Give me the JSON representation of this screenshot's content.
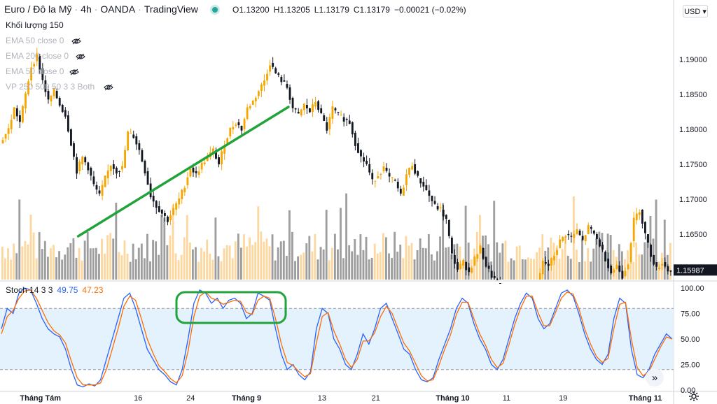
{
  "header": {
    "symbol": "Euro / Đô la Mỹ",
    "interval": "4h",
    "broker": "OANDA",
    "source": "TradingView",
    "sep": "·",
    "ohlc": {
      "o_label": "O",
      "o": "1.13200",
      "h_label": "H",
      "h": "1.13205",
      "l_label": "L",
      "l": "1.13179",
      "c_label": "C",
      "c": "1.13179",
      "change": "−0.00021 (−0.02%)"
    }
  },
  "indicators": [
    {
      "label": "Khối lượng  150"
    },
    {
      "label": "EMA 50 close 0"
    },
    {
      "label": "EMA 200 close 0"
    },
    {
      "label": "EMA 50 close 0"
    },
    {
      "label": "VP 250 500 50 3 3 Both"
    }
  ],
  "currency_button": "USD ▾",
  "stoch": {
    "name": "Stoch 14 3 3",
    "k": "49.75",
    "d": "47.23",
    "k_color": "#2962ff",
    "d_color": "#ff6d00"
  },
  "nav_icon": "»",
  "colors": {
    "up": "#f7a600",
    "down": "#131722",
    "vol_up": "#fcd8a0",
    "vol_down": "#9e9e9e",
    "band": "#e3f2fd",
    "annot": "#21a33a"
  },
  "chart_data": [
    {
      "type": "candlestick",
      "yaxis_ticks": [
        "1.19000",
        "1.18500",
        "1.18000",
        "1.17500",
        "1.17000",
        "1.16500",
        "1.16000"
      ],
      "ylim": [
        1.1585,
        1.1965
      ],
      "current_price": "1.15987",
      "xaxis_ticks": [
        "Tháng Tám",
        "16",
        "24",
        "Tháng 9",
        "13",
        "21",
        "Tháng 10",
        "11",
        "19",
        "Tháng 11"
      ],
      "price_path": [
        [
          0,
          1.178
        ],
        [
          3,
          1.18
        ],
        [
          5,
          1.183
        ],
        [
          7,
          1.181
        ],
        [
          9,
          1.185
        ],
        [
          11,
          1.189
        ],
        [
          13,
          1.1905
        ],
        [
          15,
          1.187
        ],
        [
          17,
          1.184
        ],
        [
          19,
          1.1855
        ],
        [
          21,
          1.1835
        ],
        [
          23,
          1.182
        ],
        [
          25,
          1.178
        ],
        [
          27,
          1.174
        ],
        [
          29,
          1.176
        ],
        [
          31,
          1.1745
        ],
        [
          33,
          1.172
        ],
        [
          35,
          1.1705
        ],
        [
          37,
          1.173
        ],
        [
          39,
          1.175
        ],
        [
          41,
          1.174
        ],
        [
          43,
          1.1745
        ],
        [
          45,
          1.1795
        ],
        [
          47,
          1.179
        ],
        [
          49,
          1.177
        ],
        [
          51,
          1.174
        ],
        [
          53,
          1.1705
        ],
        [
          55,
          1.169
        ],
        [
          57,
          1.168
        ],
        [
          59,
          1.167
        ],
        [
          61,
          1.1685
        ],
        [
          63,
          1.17
        ],
        [
          65,
          1.172
        ],
        [
          67,
          1.1745
        ],
        [
          69,
          1.1735
        ],
        [
          71,
          1.175
        ],
        [
          73,
          1.176
        ],
        [
          75,
          1.177
        ],
        [
          77,
          1.175
        ],
        [
          79,
          1.178
        ],
        [
          81,
          1.18
        ],
        [
          83,
          1.181
        ],
        [
          85,
          1.18
        ],
        [
          87,
          1.183
        ],
        [
          89,
          1.184
        ],
        [
          91,
          1.1855
        ],
        [
          93,
          1.187
        ],
        [
          95,
          1.1895
        ],
        [
          97,
          1.188
        ],
        [
          99,
          1.187
        ],
        [
          101,
          1.186
        ],
        [
          103,
          1.183
        ],
        [
          105,
          1.182
        ],
        [
          107,
          1.1835
        ],
        [
          109,
          1.1825
        ],
        [
          111,
          1.184
        ],
        [
          113,
          1.182
        ],
        [
          115,
          1.18
        ],
        [
          117,
          1.183
        ],
        [
          119,
          1.182
        ],
        [
          121,
          1.1815
        ],
        [
          123,
          1.181
        ],
        [
          125,
          1.178
        ],
        [
          127,
          1.176
        ],
        [
          129,
          1.175
        ],
        [
          131,
          1.1725
        ],
        [
          133,
          1.1735
        ],
        [
          135,
          1.1745
        ],
        [
          137,
          1.173
        ],
        [
          139,
          1.1725
        ],
        [
          141,
          1.1705
        ],
        [
          143,
          1.1735
        ],
        [
          145,
          1.175
        ],
        [
          147,
          1.173
        ],
        [
          149,
          1.172
        ],
        [
          151,
          1.1705
        ],
        [
          153,
          1.169
        ],
        [
          155,
          1.1685
        ],
        [
          157,
          1.167
        ],
        [
          159,
          1.162
        ],
        [
          161,
          1.16
        ],
        [
          163,
          1.161
        ],
        [
          165,
          1.1595
        ],
        [
          167,
          1.1615
        ],
        [
          169,
          1.163
        ],
        [
          171,
          1.1605
        ],
        [
          173,
          1.159
        ],
        [
          175,
          1.158
        ],
        [
          177,
          1.157
        ],
        [
          179,
          1.1575
        ],
        [
          181,
          1.156
        ],
        [
          183,
          1.1565
        ],
        [
          185,
          1.155
        ],
        [
          187,
          1.156
        ],
        [
          189,
          1.1575
        ],
        [
          191,
          1.161
        ],
        [
          193,
          1.1605
        ],
        [
          195,
          1.162
        ],
        [
          197,
          1.164
        ],
        [
          199,
          1.165
        ],
        [
          201,
          1.1645
        ],
        [
          203,
          1.1655
        ],
        [
          205,
          1.164
        ],
        [
          207,
          1.166
        ],
        [
          209,
          1.165
        ],
        [
          211,
          1.1635
        ],
        [
          213,
          1.1615
        ],
        [
          215,
          1.1595
        ],
        [
          217,
          1.1605
        ],
        [
          219,
          1.159
        ],
        [
          221,
          1.161
        ],
        [
          223,
          1.167
        ],
        [
          225,
          1.1685
        ],
        [
          227,
          1.165
        ],
        [
          229,
          1.162
        ],
        [
          231,
          1.16
        ],
        [
          233,
          1.161
        ],
        [
          235,
          1.1598
        ]
      ],
      "trendline": {
        "from": [
          27,
          1.1665
        ],
        "to": [
          101,
          1.184
        ]
      }
    },
    {
      "type": "line",
      "name": "Stoch 14 3 3",
      "yaxis_ticks": [
        "100.00",
        "75.00",
        "50.00",
        "25.00",
        "0.00"
      ],
      "ylim": [
        0,
        100
      ],
      "bands": [
        20,
        80
      ],
      "series": [
        {
          "name": "%K",
          "values": [
            60,
            80,
            75,
            95,
            100,
            98,
            85,
            70,
            60,
            55,
            52,
            40,
            20,
            5,
            3,
            6,
            4,
            10,
            30,
            50,
            70,
            90,
            95,
            80,
            60,
            40,
            30,
            20,
            15,
            8,
            5,
            20,
            50,
            85,
            98,
            95,
            85,
            90,
            80,
            88,
            90,
            85,
            70,
            75,
            95,
            92,
            88,
            60,
            35,
            20,
            25,
            15,
            10,
            18,
            60,
            80,
            75,
            50,
            40,
            25,
            20,
            35,
            55,
            45,
            60,
            80,
            85,
            70,
            55,
            40,
            35,
            20,
            10,
            8,
            12,
            30,
            45,
            60,
            80,
            90,
            85,
            65,
            50,
            40,
            25,
            20,
            30,
            50,
            70,
            85,
            95,
            90,
            70,
            60,
            65,
            80,
            95,
            98,
            92,
            75,
            55,
            40,
            30,
            25,
            35,
            70,
            90,
            85,
            40,
            15,
            12,
            20,
            35,
            45,
            55,
            50
          ]
        },
        {
          "name": "%D",
          "values": [
            55,
            72,
            78,
            90,
            97,
            98,
            90,
            78,
            66,
            58,
            54,
            46,
            28,
            12,
            5,
            5,
            5,
            7,
            20,
            40,
            60,
            82,
            92,
            88,
            70,
            50,
            36,
            24,
            18,
            11,
            7,
            14,
            38,
            72,
            92,
            96,
            90,
            88,
            84,
            86,
            88,
            87,
            76,
            74,
            88,
            92,
            90,
            70,
            45,
            27,
            24,
            18,
            13,
            16,
            46,
            72,
            76,
            58,
            45,
            30,
            22,
            30,
            48,
            48,
            56,
            72,
            82,
            75,
            60,
            46,
            38,
            26,
            14,
            9,
            10,
            24,
            40,
            54,
            74,
            86,
            86,
            70,
            55,
            44,
            30,
            22,
            26,
            44,
            64,
            80,
            92,
            92,
            76,
            63,
            63,
            76,
            90,
            96,
            94,
            80,
            60,
            45,
            33,
            27,
            31,
            60,
            84,
            86,
            50,
            22,
            14,
            18,
            30,
            42,
            52,
            50
          ]
        }
      ]
    }
  ]
}
